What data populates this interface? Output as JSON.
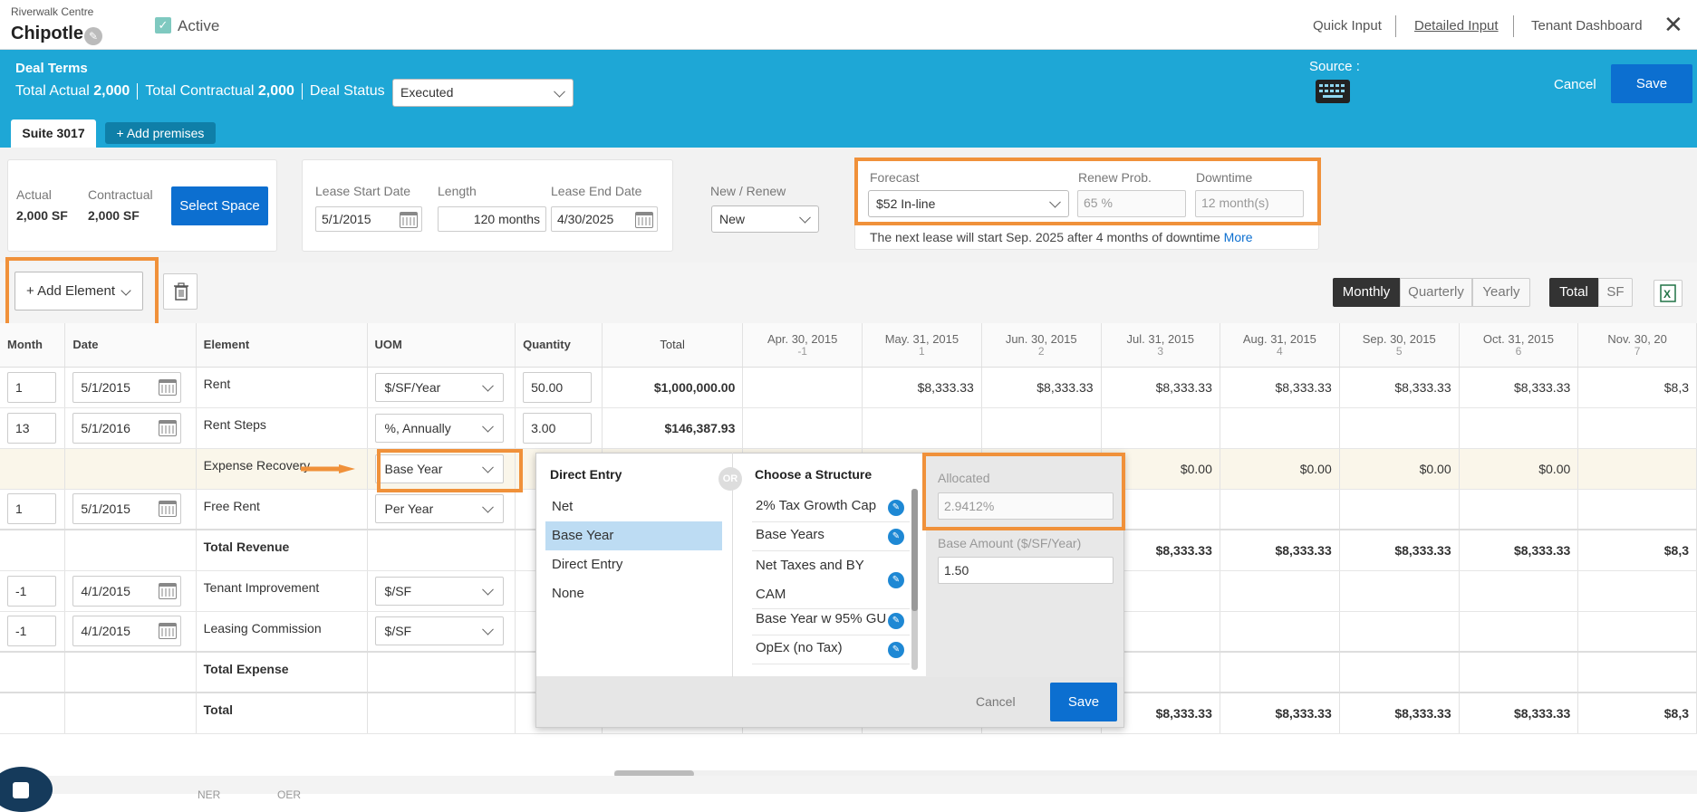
{
  "header": {
    "property": "Riverwalk Centre",
    "tenant": "Chipotle",
    "active_label": "Active",
    "links": [
      "Quick Input",
      "Detailed Input",
      "Tenant Dashboard"
    ]
  },
  "deal": {
    "title": "Deal Terms",
    "total_actual_label": "Total Actual",
    "total_actual": "2,000",
    "total_contractual_label": "Total Contractual",
    "total_contractual": "2,000",
    "status_label": "Deal Status",
    "status": "Executed",
    "source_label": "Source :",
    "cancel": "Cancel",
    "save": "Save"
  },
  "tabs": {
    "suite": "Suite 3017",
    "add": "+ Add premises"
  },
  "space": {
    "actual_label": "Actual",
    "actual": "2,000 SF",
    "contractual_label": "Contractual",
    "contractual": "2,000 SF",
    "select_button": "Select Space"
  },
  "lease": {
    "start_label": "Lease Start Date",
    "start": "5/1/2015",
    "length_label": "Length",
    "length": "120 months",
    "end_label": "Lease End Date",
    "end": "4/30/2025",
    "new_renew_label": "New / Renew",
    "new_renew": "New"
  },
  "forecast": {
    "forecast_label": "Forecast",
    "forecast": "$52 In-line",
    "renew_label": "Renew Prob.",
    "renew_placeholder": "65 %",
    "downtime_label": "Downtime",
    "downtime_placeholder": "12 month(s)",
    "note": "The next lease will start Sep. 2025 after 4 months of downtime",
    "more": "More"
  },
  "toolbar": {
    "add_element": "+ Add Element",
    "periods": [
      "Monthly",
      "Quarterly",
      "Yearly"
    ],
    "active_period": "Monthly",
    "units": [
      "Total",
      "SF"
    ],
    "active_unit": "Total"
  },
  "grid": {
    "headers": {
      "month": "Month",
      "date": "Date",
      "element": "Element",
      "uom": "UOM",
      "quantity": "Quantity",
      "total": "Total"
    },
    "periods": [
      {
        "date": "Apr. 30, 2015",
        "idx": "-1"
      },
      {
        "date": "May. 31, 2015",
        "idx": "1"
      },
      {
        "date": "Jun. 30, 2015",
        "idx": "2"
      },
      {
        "date": "Jul. 31, 2015",
        "idx": "3"
      },
      {
        "date": "Aug. 31, 2015",
        "idx": "4"
      },
      {
        "date": "Sep. 30, 2015",
        "idx": "5"
      },
      {
        "date": "Oct. 31, 2015",
        "idx": "6"
      },
      {
        "date": "Nov. 30, 20",
        "idx": "7"
      }
    ],
    "rows": [
      {
        "month": "1",
        "date": "5/1/2015",
        "element": "Rent",
        "uom": "$/SF/Year",
        "qty": "50.00",
        "total": "$1,000,000.00",
        "vals": [
          "",
          "$8,333.33",
          "$8,333.33",
          "$8,333.33",
          "$8,333.33",
          "$8,333.33",
          "$8,333.33",
          "$8,3"
        ]
      },
      {
        "month": "13",
        "date": "5/1/2016",
        "element": "Rent Steps",
        "uom": "%, Annually",
        "qty": "3.00",
        "total": "$146,387.93",
        "vals": [
          "",
          "",
          "",
          "",
          "",
          "",
          "",
          ""
        ]
      },
      {
        "month": "",
        "date": "",
        "element": "Expense Recovery",
        "uom": "Base Year",
        "qty": "",
        "total": "",
        "vals": [
          "",
          "",
          "",
          "$0.00",
          "$0.00",
          "$0.00",
          "$0.00",
          ""
        ]
      },
      {
        "month": "1",
        "date": "5/1/2015",
        "element": "Free Rent",
        "uom": "Per Year",
        "qty": "",
        "total": "",
        "vals": [
          "",
          "",
          "",
          "",
          "",
          "",
          "",
          ""
        ]
      },
      {
        "month": "",
        "date": "",
        "element": "Total Revenue",
        "uom": "",
        "qty": "",
        "total": "",
        "vals": [
          "",
          "",
          "",
          "$8,333.33",
          "$8,333.33",
          "$8,333.33",
          "$8,333.33",
          "$8,3"
        ]
      },
      {
        "month": "-1",
        "date": "4/1/2015",
        "element": "Tenant Improvement",
        "uom": "$/SF",
        "qty": "",
        "total": "",
        "vals": [
          "",
          "",
          "",
          "",
          "",
          "",
          "",
          ""
        ]
      },
      {
        "month": "-1",
        "date": "4/1/2015",
        "element": "Leasing Commission",
        "uom": "$/SF",
        "qty": "",
        "total": "",
        "vals": [
          "",
          "",
          "",
          "",
          "",
          "",
          "",
          ""
        ]
      },
      {
        "month": "",
        "date": "",
        "element": "Total Expense",
        "uom": "",
        "qty": "",
        "total": "",
        "vals": [
          "",
          "",
          "",
          "",
          "",
          "",
          "",
          ""
        ]
      },
      {
        "month": "",
        "date": "",
        "element": "Total",
        "uom": "",
        "qty": "",
        "total": "",
        "vals": [
          "",
          "",
          "",
          "$8,333.33",
          "$8,333.33",
          "$8,333.33",
          "$8,333.33",
          "$8,3"
        ]
      }
    ]
  },
  "popup": {
    "direct_header": "Direct Entry",
    "direct_options": [
      "Net",
      "Base Year",
      "Direct Entry",
      "None"
    ],
    "selected_option": "Base Year",
    "or": "OR",
    "structure_header": "Choose a Structure",
    "structures": [
      "2% Tax Growth Cap",
      "Base Years",
      "Net Taxes and BY CAM",
      "Base Year w 95% GU",
      "OpEx (no Tax)"
    ],
    "allocated_label": "Allocated",
    "allocated_placeholder": "2.9412%",
    "base_amount_label": "Base Amount ($/SF/Year)",
    "base_amount": "1.50",
    "cancel": "Cancel",
    "save": "Save"
  },
  "footer_tabs": [
    "NER",
    "OER"
  ],
  "colors": {
    "band": "#1ea7d6",
    "accent": "#0c6fd0",
    "highlight": "#f0913a"
  }
}
